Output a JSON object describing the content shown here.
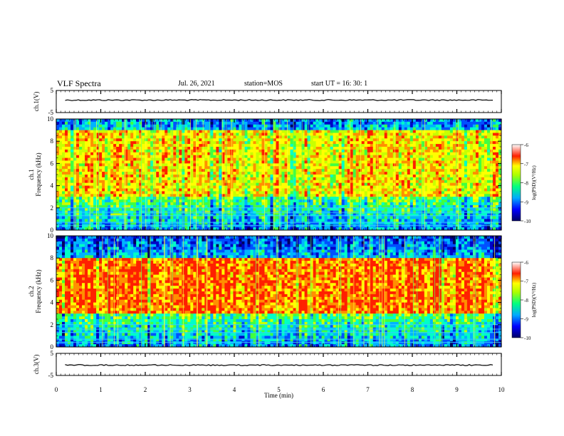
{
  "header": {
    "title": "VLF Spectra",
    "date": "Jul. 26, 2021",
    "station": "station=MOS",
    "start": "start UT =  16: 30: 1"
  },
  "chart_data": [
    {
      "type": "line",
      "panel": "ch1-waveform",
      "ylabel": "ch.1(V)",
      "ylim": [
        -5,
        5
      ],
      "yticks": [
        "5",
        "-5"
      ],
      "xlim": [
        0,
        10
      ],
      "trace_level": 0
    },
    {
      "type": "heatmap",
      "panel": "ch1-spectrogram",
      "ylabel": "ch.1\nFrequency (kHz)",
      "ylim": [
        0,
        10
      ],
      "yticks": [
        "0",
        "2",
        "4",
        "6",
        "8",
        "10"
      ],
      "xlim": [
        0,
        10
      ],
      "intensity_band_khz": [
        3,
        9
      ],
      "colorbar": {
        "label": "log(PSD)(V²/Hz)",
        "range": [
          -10,
          -6
        ],
        "ticks": [
          "-6",
          "-7",
          "-8",
          "-9",
          "-10"
        ]
      }
    },
    {
      "type": "heatmap",
      "panel": "ch2-spectrogram",
      "ylabel": "ch.2\nFrequency (kHz)",
      "ylim": [
        0,
        10
      ],
      "yticks": [
        "0",
        "2",
        "4",
        "6",
        "8",
        "10"
      ],
      "xlim": [
        0,
        10
      ],
      "intensity_band_khz": [
        3,
        8
      ],
      "colorbar": {
        "label": "log(PSD)(V²/Hz)",
        "range": [
          -10,
          -6
        ],
        "ticks": [
          "-6",
          "-7",
          "-8",
          "-9",
          "-10"
        ]
      }
    },
    {
      "type": "line",
      "panel": "ch3-waveform",
      "ylabel": "ch.3(V)",
      "ylim": [
        -5,
        5
      ],
      "yticks": [
        "5",
        "-5"
      ],
      "xlim": [
        0,
        10
      ],
      "xlabel": "Time (min)",
      "xticks": [
        "0",
        "1",
        "2",
        "3",
        "4",
        "5",
        "6",
        "7",
        "8",
        "9",
        "10"
      ],
      "trace_level": 0
    }
  ]
}
